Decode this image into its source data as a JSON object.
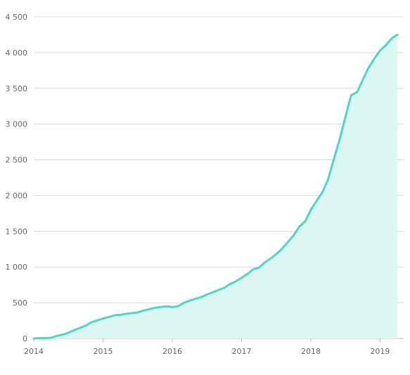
{
  "chart_data": {
    "type": "area",
    "title": "",
    "xlabel": "",
    "ylabel": "",
    "ylim": [
      0,
      4500
    ],
    "xlim": [
      2014.0,
      2019.3
    ],
    "grid": true,
    "y_ticks": [
      0,
      500,
      1000,
      1500,
      2000,
      2500,
      3000,
      3500,
      4000,
      4500
    ],
    "y_tick_labels": [
      "0",
      "500",
      "1 000",
      "1 500",
      "2 000",
      "2 500",
      "3 000",
      "3 500",
      "4 000",
      "4 500"
    ],
    "x_ticks": [
      2014,
      2015,
      2016,
      2017,
      2018,
      2019
    ],
    "x_tick_labels": [
      "2014",
      "2015",
      "2016",
      "2017",
      "2018",
      "2019"
    ],
    "line_color": "#4fd6c4",
    "fill_color": "#dcf6f1",
    "series": [
      {
        "x": [
          2014.0,
          2014.08,
          2014.17,
          2014.25,
          2014.33,
          2014.42,
          2014.5,
          2014.58,
          2014.67,
          2014.75,
          2014.83,
          2014.92,
          2015.0,
          2015.08,
          2015.17,
          2015.25,
          2015.33,
          2015.42,
          2015.5,
          2015.58,
          2015.67,
          2015.75,
          2015.83,
          2015.92,
          2016.0,
          2016.08,
          2016.17,
          2016.25,
          2016.33,
          2016.42,
          2016.5,
          2016.58,
          2016.67,
          2016.75,
          2016.83,
          2016.92,
          2017.0,
          2017.08,
          2017.17,
          2017.25,
          2017.33,
          2017.42,
          2017.5,
          2017.58,
          2017.67,
          2017.75,
          2017.83,
          2017.92,
          2018.0,
          2018.08,
          2018.17,
          2018.25,
          2018.33,
          2018.42,
          2018.5,
          2018.58,
          2018.67,
          2018.75,
          2018.83,
          2018.92,
          2019.0,
          2019.08,
          2019.17,
          2019.25
        ],
        "y": [
          0,
          5,
          5,
          10,
          35,
          55,
          80,
          115,
          150,
          180,
          225,
          255,
          280,
          300,
          325,
          330,
          345,
          355,
          365,
          390,
          410,
          430,
          440,
          450,
          440,
          450,
          500,
          530,
          555,
          580,
          615,
          645,
          680,
          710,
          760,
          800,
          850,
          900,
          970,
          990,
          1060,
          1120,
          1180,
          1250,
          1350,
          1440,
          1560,
          1640,
          1800,
          1920,
          2050,
          2230,
          2500,
          2800,
          3100,
          3400,
          3450,
          3620,
          3780,
          3920,
          4030,
          4100,
          4200,
          4250
        ]
      }
    ]
  }
}
